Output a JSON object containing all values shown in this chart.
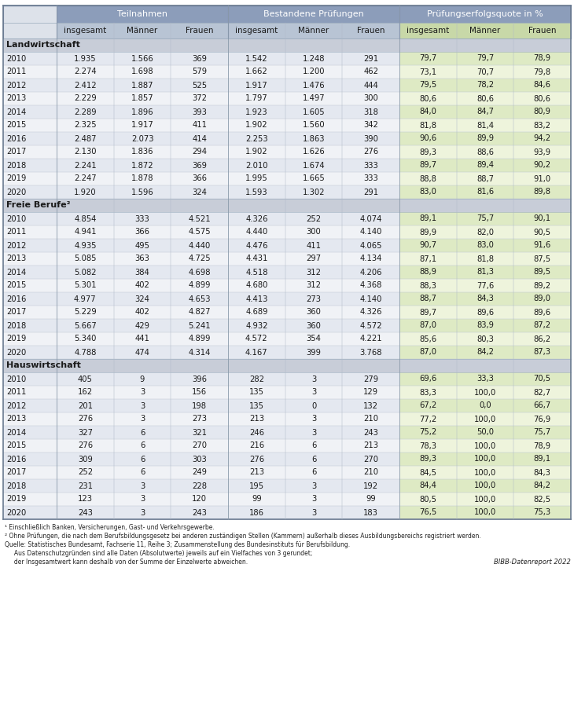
{
  "header_groups": [
    "Teilnahmen",
    "Bestandene Prüfungen",
    "Prüfungserfolgsquote in %"
  ],
  "sub_headers": [
    "insgesamt",
    "Männer",
    "Frauen",
    "insgesamt",
    "Männer",
    "Frauen",
    "insgesamt",
    "Männer",
    "Frauen"
  ],
  "sections": [
    {
      "name": "Landwirtschaft",
      "rows": [
        [
          "2010",
          "1.935",
          "1.566",
          "369",
          "1.542",
          "1.248",
          "291",
          "79,7",
          "79,7",
          "78,9"
        ],
        [
          "2011",
          "2.274",
          "1.698",
          "579",
          "1.662",
          "1.200",
          "462",
          "73,1",
          "70,7",
          "79,8"
        ],
        [
          "2012",
          "2.412",
          "1.887",
          "525",
          "1.917",
          "1.476",
          "444",
          "79,5",
          "78,2",
          "84,6"
        ],
        [
          "2013",
          "2.229",
          "1.857",
          "372",
          "1.797",
          "1.497",
          "300",
          "80,6",
          "80,6",
          "80,6"
        ],
        [
          "2014",
          "2.289",
          "1.896",
          "393",
          "1.923",
          "1.605",
          "318",
          "84,0",
          "84,7",
          "80,9"
        ],
        [
          "2015",
          "2.325",
          "1.917",
          "411",
          "1.902",
          "1.560",
          "342",
          "81,8",
          "81,4",
          "83,2"
        ],
        [
          "2016",
          "2.487",
          "2.073",
          "414",
          "2.253",
          "1.863",
          "390",
          "90,6",
          "89,9",
          "94,2"
        ],
        [
          "2017",
          "2.130",
          "1.836",
          "294",
          "1.902",
          "1.626",
          "276",
          "89,3",
          "88,6",
          "93,9"
        ],
        [
          "2018",
          "2.241",
          "1.872",
          "369",
          "2.010",
          "1.674",
          "333",
          "89,7",
          "89,4",
          "90,2"
        ],
        [
          "2019",
          "2.247",
          "1.878",
          "366",
          "1.995",
          "1.665",
          "333",
          "88,8",
          "88,7",
          "91,0"
        ],
        [
          "2020",
          "1.920",
          "1.596",
          "324",
          "1.593",
          "1.302",
          "291",
          "83,0",
          "81,6",
          "89,8"
        ]
      ]
    },
    {
      "name": "Freie Berufe²",
      "rows": [
        [
          "2010",
          "4.854",
          "333",
          "4.521",
          "4.326",
          "252",
          "4.074",
          "89,1",
          "75,7",
          "90,1"
        ],
        [
          "2011",
          "4.941",
          "366",
          "4.575",
          "4.440",
          "300",
          "4.140",
          "89,9",
          "82,0",
          "90,5"
        ],
        [
          "2012",
          "4.935",
          "495",
          "4.440",
          "4.476",
          "411",
          "4.065",
          "90,7",
          "83,0",
          "91,6"
        ],
        [
          "2013",
          "5.085",
          "363",
          "4.725",
          "4.431",
          "297",
          "4.134",
          "87,1",
          "81,8",
          "87,5"
        ],
        [
          "2014",
          "5.082",
          "384",
          "4.698",
          "4.518",
          "312",
          "4.206",
          "88,9",
          "81,3",
          "89,5"
        ],
        [
          "2015",
          "5.301",
          "402",
          "4.899",
          "4.680",
          "312",
          "4.368",
          "88,3",
          "77,6",
          "89,2"
        ],
        [
          "2016",
          "4.977",
          "324",
          "4.653",
          "4.413",
          "273",
          "4.140",
          "88,7",
          "84,3",
          "89,0"
        ],
        [
          "2017",
          "5.229",
          "402",
          "4.827",
          "4.689",
          "360",
          "4.326",
          "89,7",
          "89,6",
          "89,6"
        ],
        [
          "2018",
          "5.667",
          "429",
          "5.241",
          "4.932",
          "360",
          "4.572",
          "87,0",
          "83,9",
          "87,2"
        ],
        [
          "2019",
          "5.340",
          "441",
          "4.899",
          "4.572",
          "354",
          "4.221",
          "85,6",
          "80,3",
          "86,2"
        ],
        [
          "2020",
          "4.788",
          "474",
          "4.314",
          "4.167",
          "399",
          "3.768",
          "87,0",
          "84,2",
          "87,3"
        ]
      ]
    },
    {
      "name": "Hauswirtschaft",
      "rows": [
        [
          "2010",
          "405",
          "9",
          "396",
          "282",
          "3",
          "279",
          "69,6",
          "33,3",
          "70,5"
        ],
        [
          "2011",
          "162",
          "3",
          "156",
          "135",
          "3",
          "129",
          "83,3",
          "100,0",
          "82,7"
        ],
        [
          "2012",
          "201",
          "3",
          "198",
          "135",
          "0",
          "132",
          "67,2",
          "0,0",
          "66,7"
        ],
        [
          "2013",
          "276",
          "3",
          "273",
          "213",
          "3",
          "210",
          "77,2",
          "100,0",
          "76,9"
        ],
        [
          "2014",
          "327",
          "6",
          "321",
          "246",
          "3",
          "243",
          "75,2",
          "50,0",
          "75,7"
        ],
        [
          "2015",
          "276",
          "6",
          "270",
          "216",
          "6",
          "213",
          "78,3",
          "100,0",
          "78,9"
        ],
        [
          "2016",
          "309",
          "6",
          "303",
          "276",
          "6",
          "270",
          "89,3",
          "100,0",
          "89,1"
        ],
        [
          "2017",
          "252",
          "6",
          "249",
          "213",
          "6",
          "210",
          "84,5",
          "100,0",
          "84,3"
        ],
        [
          "2018",
          "231",
          "3",
          "228",
          "195",
          "3",
          "192",
          "84,4",
          "100,0",
          "84,2"
        ],
        [
          "2019",
          "123",
          "3",
          "120",
          "99",
          "3",
          "99",
          "80,5",
          "100,0",
          "82,5"
        ],
        [
          "2020",
          "243",
          "3",
          "243",
          "186",
          "3",
          "183",
          "76,5",
          "100,0",
          "75,3"
        ]
      ]
    }
  ],
  "footnotes": [
    "¹ Einschließlich Banken, Versicherungen, Gast- und Verkehrsgewerbe.",
    "² Ohne Prüfungen, die nach dem Berufsbildungsgesetz bei anderen zuständigen Stellen (Kammern) außerhalb dieses Ausbildungsbereichs registriert werden.",
    "Quelle: Statistisches Bundesamt, Fachserie 11, Reihe 3; Zusammenstellung des Bundesinstituts für Berufsbildung.",
    "     Aus Datenschutzgründen sind alle Daten (Absolutwerte) jeweils auf ein Vielfaches von 3 gerundet;",
    "     der Insgesamtwert kann deshalb von der Summe der Einzelwerte abweichen."
  ],
  "bibb_label": "BIBB-Datenreport 2022",
  "col_header_bg": "#8c9dba",
  "subheader_bg_left": "#b8c4d4",
  "subheader_bg_right": "#c8d8a8",
  "section_bg": "#c8cdd8",
  "row_even_left_bg": "#e4e8f0",
  "row_odd_left_bg": "#f0f2f6",
  "row_even_right_bg": "#deeac4",
  "row_odd_right_bg": "#eef4dc",
  "year_col_bg_even": "#e4e8f0",
  "year_col_bg_odd": "#f0f2f6",
  "text_dark": "#1a1a1a",
  "text_white": "#ffffff",
  "border_light": "#b0b8c8",
  "border_section": "#8a9ab0"
}
